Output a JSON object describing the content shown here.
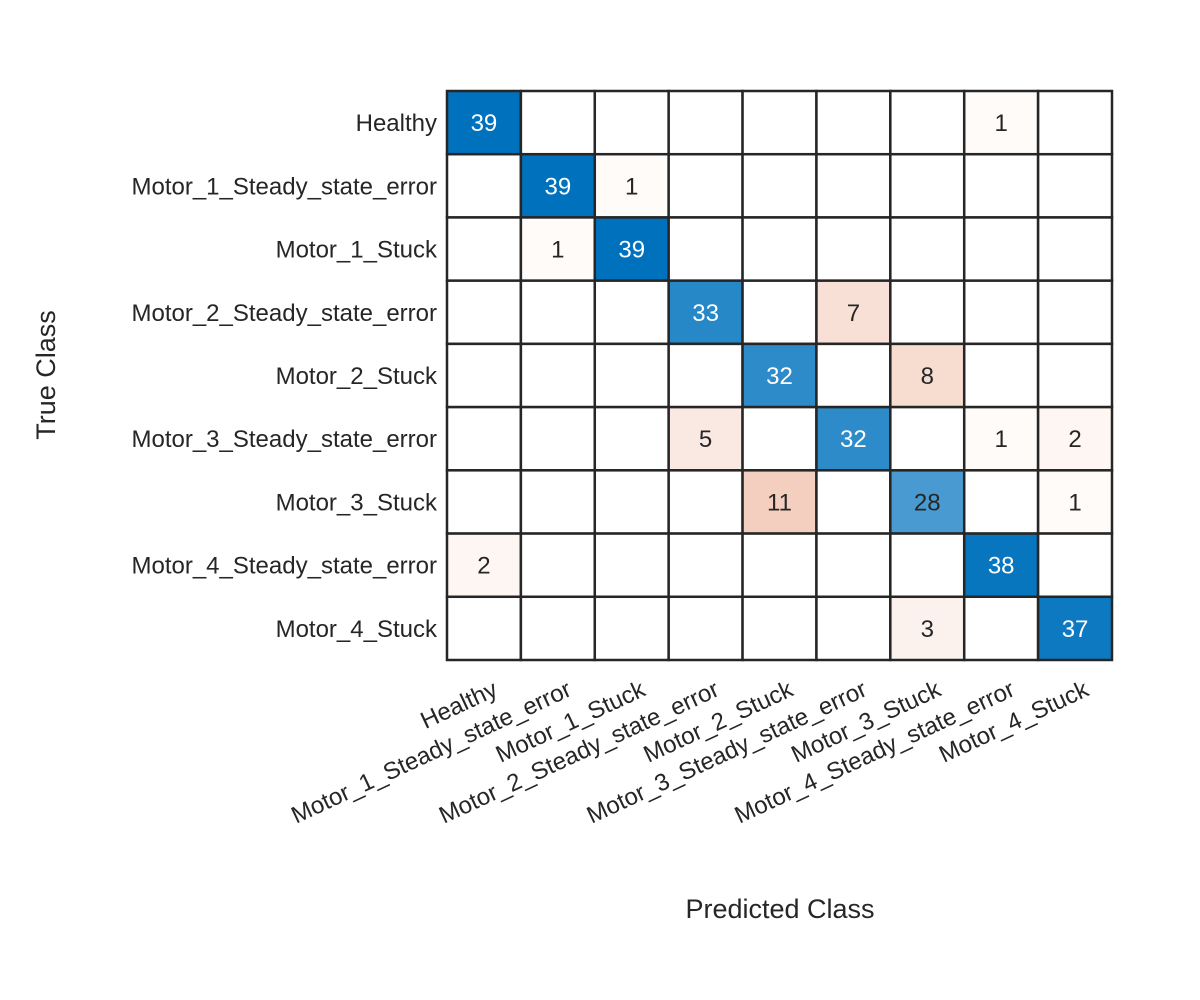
{
  "chart_data": {
    "type": "heatmap",
    "subtype": "confusion-matrix",
    "title": "",
    "xlabel": "Predicted Class",
    "ylabel": "True Class",
    "classes": [
      "Healthy",
      "Motor_1_Steady_state_error",
      "Motor_1_Stuck",
      "Motor_2_Steady_state_error",
      "Motor_2_Stuck",
      "Motor_3_Steady_state_error",
      "Motor_3_Stuck",
      "Motor_4_Steady_state_error",
      "Motor_4_Stuck"
    ],
    "matrix": [
      [
        39,
        0,
        0,
        0,
        0,
        0,
        0,
        1,
        0
      ],
      [
        0,
        39,
        1,
        0,
        0,
        0,
        0,
        0,
        0
      ],
      [
        0,
        1,
        39,
        0,
        0,
        0,
        0,
        0,
        0
      ],
      [
        0,
        0,
        0,
        33,
        0,
        7,
        0,
        0,
        0
      ],
      [
        0,
        0,
        0,
        0,
        32,
        0,
        8,
        0,
        0
      ],
      [
        0,
        0,
        0,
        5,
        0,
        32,
        0,
        1,
        2
      ],
      [
        0,
        0,
        0,
        0,
        11,
        0,
        28,
        0,
        1
      ],
      [
        2,
        0,
        0,
        0,
        0,
        0,
        0,
        38,
        0
      ],
      [
        0,
        0,
        0,
        0,
        0,
        0,
        3,
        0,
        37
      ]
    ],
    "colors": {
      "diagonal": "#0072BD",
      "off_diagonal": "#D95319",
      "grid": "#262626"
    }
  }
}
